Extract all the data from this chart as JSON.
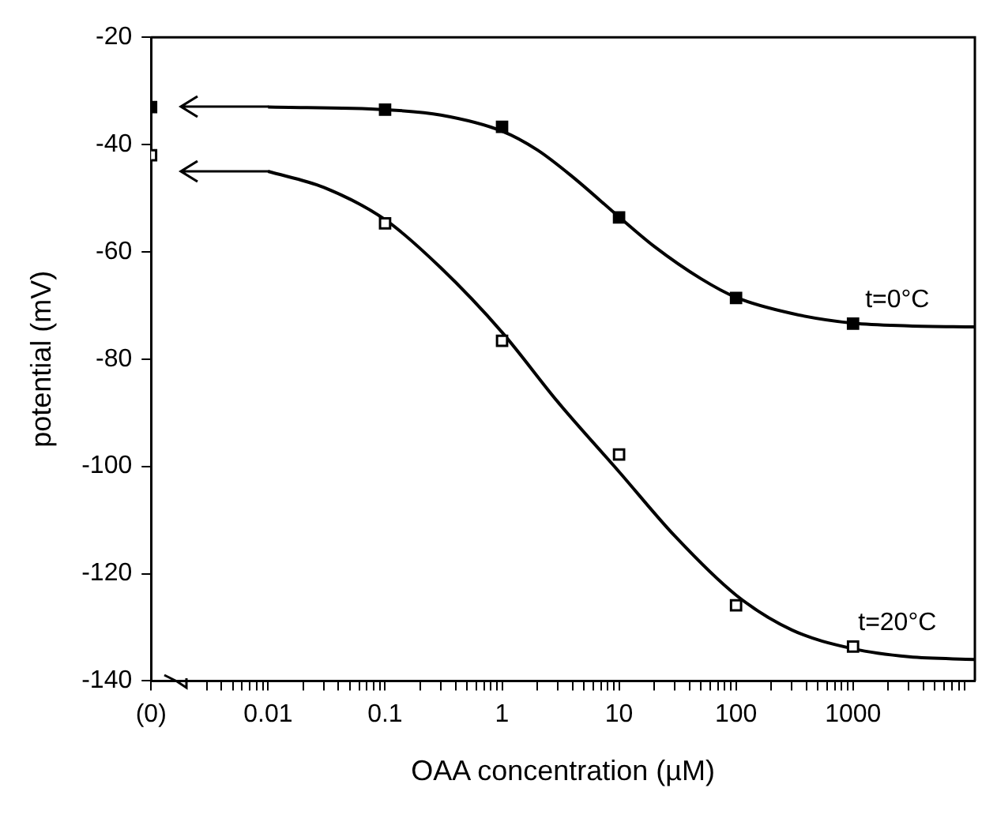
{
  "chart_data": {
    "type": "scatter",
    "xlabel": "OAA concentration (µM)",
    "ylabel": "potential (mV)",
    "log": "x",
    "marker": "square",
    "grid": false,
    "legend": false,
    "xlim": [
      0.001,
      11000
    ],
    "ylim": [
      -140,
      -20
    ],
    "xticks": [
      {
        "value": 0.001,
        "label": "(0)"
      },
      {
        "value": 0.003,
        "label": null
      },
      {
        "value": 0.004,
        "label": null
      },
      {
        "value": 0.005,
        "label": null
      },
      {
        "value": 0.006,
        "label": null
      },
      {
        "value": 0.007,
        "label": null
      },
      {
        "value": 0.008,
        "label": null
      },
      {
        "value": 0.009,
        "label": null
      },
      0.01,
      {
        "value": 0.02,
        "label": null
      },
      {
        "value": 0.03,
        "label": null
      },
      {
        "value": 0.04,
        "label": null
      },
      {
        "value": 0.05,
        "label": null
      },
      {
        "value": 0.06,
        "label": null
      },
      {
        "value": 0.07,
        "label": null
      },
      {
        "value": 0.08,
        "label": null
      },
      {
        "value": 0.09,
        "label": null
      },
      0.1,
      {
        "value": 0.2,
        "label": null
      },
      {
        "value": 0.3,
        "label": null
      },
      {
        "value": 0.4,
        "label": null
      },
      {
        "value": 0.5,
        "label": null
      },
      {
        "value": 0.6,
        "label": null
      },
      {
        "value": 0.7,
        "label": null
      },
      {
        "value": 0.8,
        "label": null
      },
      {
        "value": 0.9,
        "label": null
      },
      1,
      {
        "value": 2,
        "label": null
      },
      {
        "value": 3,
        "label": null
      },
      {
        "value": 4,
        "label": null
      },
      {
        "value": 5,
        "label": null
      },
      {
        "value": 6,
        "label": null
      },
      {
        "value": 7,
        "label": null
      },
      {
        "value": 8,
        "label": null
      },
      {
        "value": 9,
        "label": null
      },
      10,
      {
        "value": 20,
        "label": null
      },
      {
        "value": 30,
        "label": null
      },
      {
        "value": 40,
        "label": null
      },
      {
        "value": 50,
        "label": null
      },
      {
        "value": 60,
        "label": null
      },
      {
        "value": 70,
        "label": null
      },
      {
        "value": 80,
        "label": null
      },
      {
        "value": 90,
        "label": null
      },
      100,
      {
        "value": 200,
        "label": null
      },
      {
        "value": 300,
        "label": null
      },
      {
        "value": 400,
        "label": null
      },
      {
        "value": 500,
        "label": null
      },
      {
        "value": 600,
        "label": null
      },
      {
        "value": 700,
        "label": null
      },
      {
        "value": 800,
        "label": null
      },
      {
        "value": 900,
        "label": null
      },
      1000,
      {
        "value": 2000,
        "label": null
      },
      {
        "value": 3000,
        "label": null
      },
      {
        "value": 4000,
        "label": null
      },
      {
        "value": 5000,
        "label": null
      },
      {
        "value": 6000,
        "label": null
      },
      {
        "value": 7000,
        "label": null
      },
      {
        "value": 8000,
        "label": null
      },
      {
        "value": 9000,
        "label": null
      }
    ],
    "yticks": [
      -140,
      -120,
      -100,
      -80,
      -60,
      -40,
      -20
    ],
    "series": [
      {
        "color": "#000000",
        "x": [
          0.001,
          0.1,
          1,
          10,
          100,
          1000
        ],
        "values": [
          -33,
          -33.5,
          -36.7,
          -53.6,
          -68.6,
          -73.4
        ]
      },
      {
        "type": "line",
        "marker": "none",
        "color": "#000000",
        "x": [
          0.01,
          0.1,
          0.3,
          1,
          2,
          4,
          10,
          20,
          50,
          100,
          300,
          1000,
          3000,
          11000
        ],
        "values": [
          -33,
          -33.5,
          -34.5,
          -37.5,
          -41,
          -46,
          -53.5,
          -59,
          -65,
          -68.5,
          -71.5,
          -73.3,
          -73.8,
          -74
        ]
      },
      {
        "color": "#ffffff",
        "x": [
          0.001,
          0.1,
          1,
          10,
          100,
          1000
        ],
        "values": [
          -42,
          -54.7,
          -76.6,
          -97.8,
          -125.9,
          -133.6
        ]
      },
      {
        "type": "line",
        "marker": "none",
        "color": "#000000",
        "x": [
          0.01,
          0.03,
          0.1,
          0.3,
          1,
          3,
          10,
          30,
          100,
          300,
          1000,
          3000,
          11000
        ],
        "values": [
          -45,
          -48,
          -54,
          -63,
          -75,
          -88,
          -101,
          -113,
          -124,
          -130.5,
          -134,
          -135.5,
          -136
        ]
      }
    ],
    "annotations": [
      "t=0°C",
      "t=20°C"
    ]
  }
}
